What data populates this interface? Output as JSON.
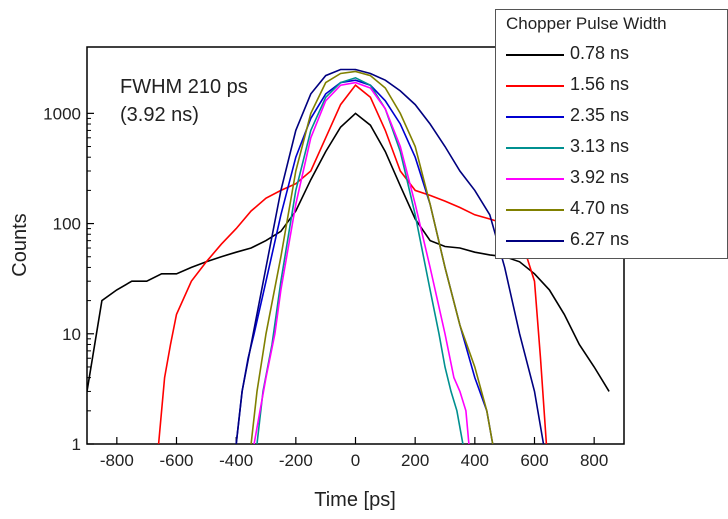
{
  "chart_data": {
    "type": "line",
    "xlabel": "Time [ps]",
    "ylabel": "Counts",
    "xlim": [
      -900,
      900
    ],
    "ylim": [
      1,
      4000
    ],
    "yscale": "log",
    "x_ticks": [
      -800,
      -600,
      -400,
      -200,
      0,
      200,
      400,
      600,
      800
    ],
    "y_ticks": [
      1,
      10,
      100,
      1000
    ],
    "y_tick_labels": [
      "1",
      "10",
      "100",
      "1000"
    ],
    "annotation": [
      "FWHM 210 ps",
      "(3.92 ns)"
    ],
    "legend_title": "Chopper Pulse Width",
    "legend_position": "top-right",
    "series": [
      {
        "name": "0.78 ns",
        "color": "#000000",
        "x": [
          -900,
          -850,
          -800,
          -750,
          -700,
          -650,
          -600,
          -550,
          -500,
          -450,
          -400,
          -350,
          -300,
          -250,
          -200,
          -150,
          -100,
          -50,
          0,
          50,
          100,
          150,
          200,
          250,
          300,
          350,
          400,
          450,
          500,
          550,
          600,
          650,
          700,
          750,
          800,
          850
        ],
        "y": [
          3,
          20,
          25,
          30,
          30,
          35,
          35,
          40,
          45,
          50,
          55,
          60,
          70,
          85,
          130,
          250,
          450,
          750,
          1000,
          780,
          450,
          220,
          110,
          70,
          62,
          60,
          55,
          52,
          50,
          45,
          35,
          25,
          15,
          8,
          5,
          3
        ]
      },
      {
        "name": "1.56 ns",
        "color": "#ff0000",
        "x": [
          -660,
          -640,
          -620,
          -600,
          -550,
          -500,
          -450,
          -400,
          -350,
          -300,
          -250,
          -200,
          -150,
          -100,
          -50,
          0,
          50,
          100,
          150,
          200,
          250,
          300,
          350,
          400,
          450,
          500,
          550,
          600,
          620,
          640
        ],
        "y": [
          1,
          4,
          8,
          15,
          30,
          45,
          65,
          90,
          130,
          170,
          200,
          230,
          300,
          600,
          1200,
          1800,
          1400,
          700,
          300,
          200,
          180,
          160,
          140,
          120,
          110,
          100,
          80,
          30,
          6,
          1
        ]
      },
      {
        "name": "2.35 ns",
        "color": "#0000d0",
        "x": [
          -400,
          -380,
          -360,
          -340,
          -300,
          -250,
          -200,
          -150,
          -100,
          -50,
          0,
          50,
          100,
          150,
          200,
          250,
          300,
          350,
          400,
          440,
          460
        ],
        "y": [
          1,
          3,
          6,
          10,
          30,
          120,
          400,
          900,
          1500,
          1900,
          2000,
          1800,
          1300,
          800,
          400,
          150,
          40,
          12,
          4,
          2,
          1
        ]
      },
      {
        "name": "3.13 ns",
        "color": "#009090",
        "x": [
          -330,
          -310,
          -280,
          -250,
          -200,
          -150,
          -100,
          -50,
          0,
          50,
          100,
          150,
          200,
          250,
          280,
          300,
          320,
          340,
          360
        ],
        "y": [
          1,
          3,
          8,
          30,
          200,
          700,
          1400,
          1900,
          2100,
          1800,
          1100,
          450,
          120,
          25,
          10,
          5,
          3,
          2,
          1
        ]
      },
      {
        "name": "3.92 ns",
        "color": "#ff00ff",
        "x": [
          -340,
          -320,
          -300,
          -270,
          -250,
          -200,
          -150,
          -100,
          -50,
          0,
          50,
          100,
          150,
          200,
          250,
          300,
          330,
          350,
          370,
          380
        ],
        "y": [
          1,
          2,
          4,
          10,
          25,
          150,
          600,
          1300,
          1800,
          1900,
          1700,
          1100,
          500,
          150,
          40,
          10,
          4,
          3,
          2,
          1
        ]
      },
      {
        "name": "4.70 ns",
        "color": "#808000",
        "x": [
          -350,
          -330,
          -300,
          -250,
          -200,
          -150,
          -100,
          -50,
          0,
          50,
          100,
          150,
          200,
          250,
          300,
          350,
          400,
          440,
          460
        ],
        "y": [
          1,
          3,
          10,
          50,
          300,
          1000,
          1900,
          2300,
          2400,
          2200,
          1700,
          1000,
          500,
          150,
          40,
          12,
          5,
          2,
          1
        ]
      },
      {
        "name": "6.27 ns",
        "color": "#000080",
        "x": [
          -400,
          -380,
          -350,
          -300,
          -250,
          -200,
          -150,
          -100,
          -50,
          0,
          50,
          100,
          150,
          200,
          250,
          300,
          350,
          400,
          450,
          500,
          550,
          600,
          630
        ],
        "y": [
          1,
          3,
          8,
          40,
          200,
          700,
          1500,
          2200,
          2500,
          2500,
          2300,
          2000,
          1600,
          1200,
          800,
          500,
          300,
          200,
          120,
          40,
          10,
          3,
          1
        ]
      }
    ]
  }
}
